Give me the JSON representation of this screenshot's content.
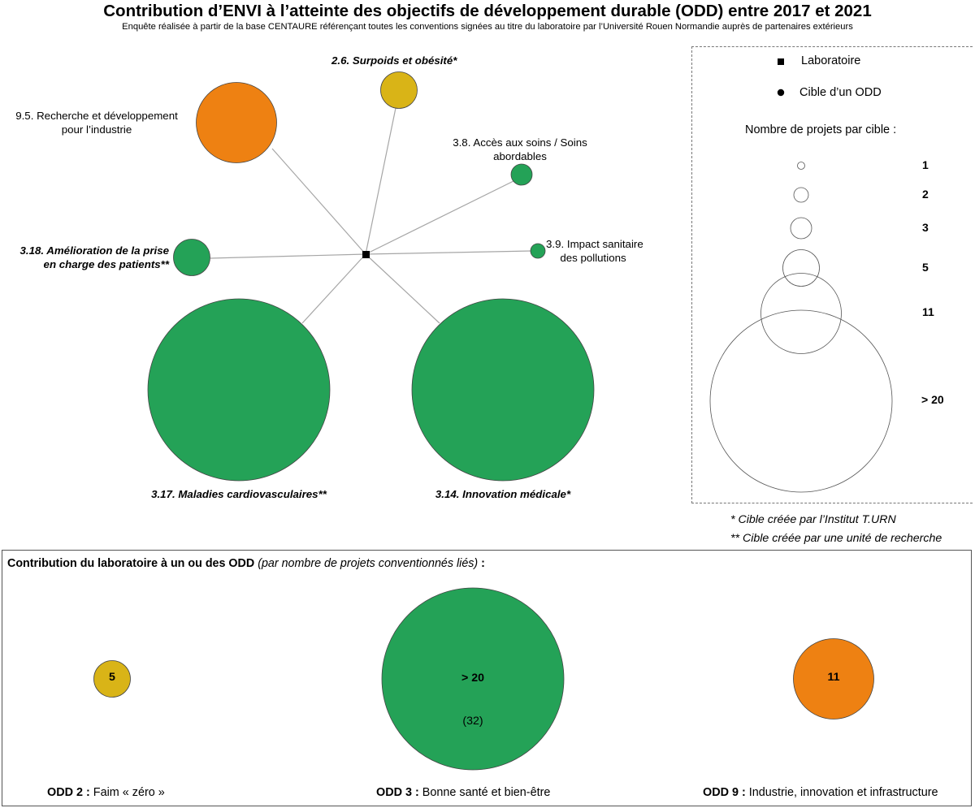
{
  "title": "Contribution d’ENVI à l’atteinte des objectifs de développement durable (ODD) entre 2017 et 2021",
  "subtitle": "Enquête réalisée à partir de la base CENTAURE référençant toutes les conventions signées au titre du laboratoire par l’Université Rouen Normandie auprès de partenaires extérieurs",
  "colors": {
    "odd2": "#d9b417",
    "odd3": "#24a257",
    "odd9": "#ee8112",
    "link": "#a6a6a6"
  },
  "network": {
    "targets": [
      {
        "id": "2.6",
        "label": "2.6. Surpoids et obésité*",
        "odd": 2,
        "projects": 5
      },
      {
        "id": "9.5",
        "label_line1": "9.5. Recherche et développement",
        "label_line2": "pour l’industrie",
        "odd": 9,
        "projects": 11
      },
      {
        "id": "3.8",
        "label_line1": "3.8. Accès aux soins / Soins",
        "label_line2": "abordables",
        "odd": 3,
        "projects": 2
      },
      {
        "id": "3.9",
        "label_line1": "3.9. Impact sanitaire",
        "label_line2": "des pollutions",
        "odd": 3,
        "projects": 1
      },
      {
        "id": "3.18",
        "label_line1": "3.18. Amélioration de la prise",
        "label_line2": "en charge des patients**",
        "odd": 3,
        "projects": 3
      },
      {
        "id": "3.17",
        "label": "3.17. Maladies cardiovasculaires**",
        "odd": 3,
        "projects": "> 20"
      },
      {
        "id": "3.14",
        "label": "3.14. Innovation médicale*",
        "odd": 3,
        "projects": "> 20"
      }
    ]
  },
  "legend": {
    "laboratoire": "Laboratoire",
    "cible": "Cible d’un ODD",
    "size_title": "Nombre de projets par cible :",
    "sizes": [
      "1",
      "2",
      "3",
      "5",
      "11",
      "> 20"
    ]
  },
  "notes": {
    "institut": "* Cible créée par l’Institut T.URN",
    "unite": "** Cible créée par une unité de recherche"
  },
  "odd_summary": {
    "title_bold": "Contribution du laboratoire à un ou des ODD",
    "title_italic": "(par nombre de projets conventionnés liés)",
    "title_colon": " :",
    "items": [
      {
        "code": "ODD 2 :",
        "name": " Faim « zéro »",
        "value": "5"
      },
      {
        "code": "ODD 3 :",
        "name": " Bonne santé et bien-être",
        "value": "> 20",
        "exact": "(32)"
      },
      {
        "code": "ODD 9 :",
        "name": " Industrie, innovation et infrastructure",
        "value": "11"
      }
    ]
  }
}
